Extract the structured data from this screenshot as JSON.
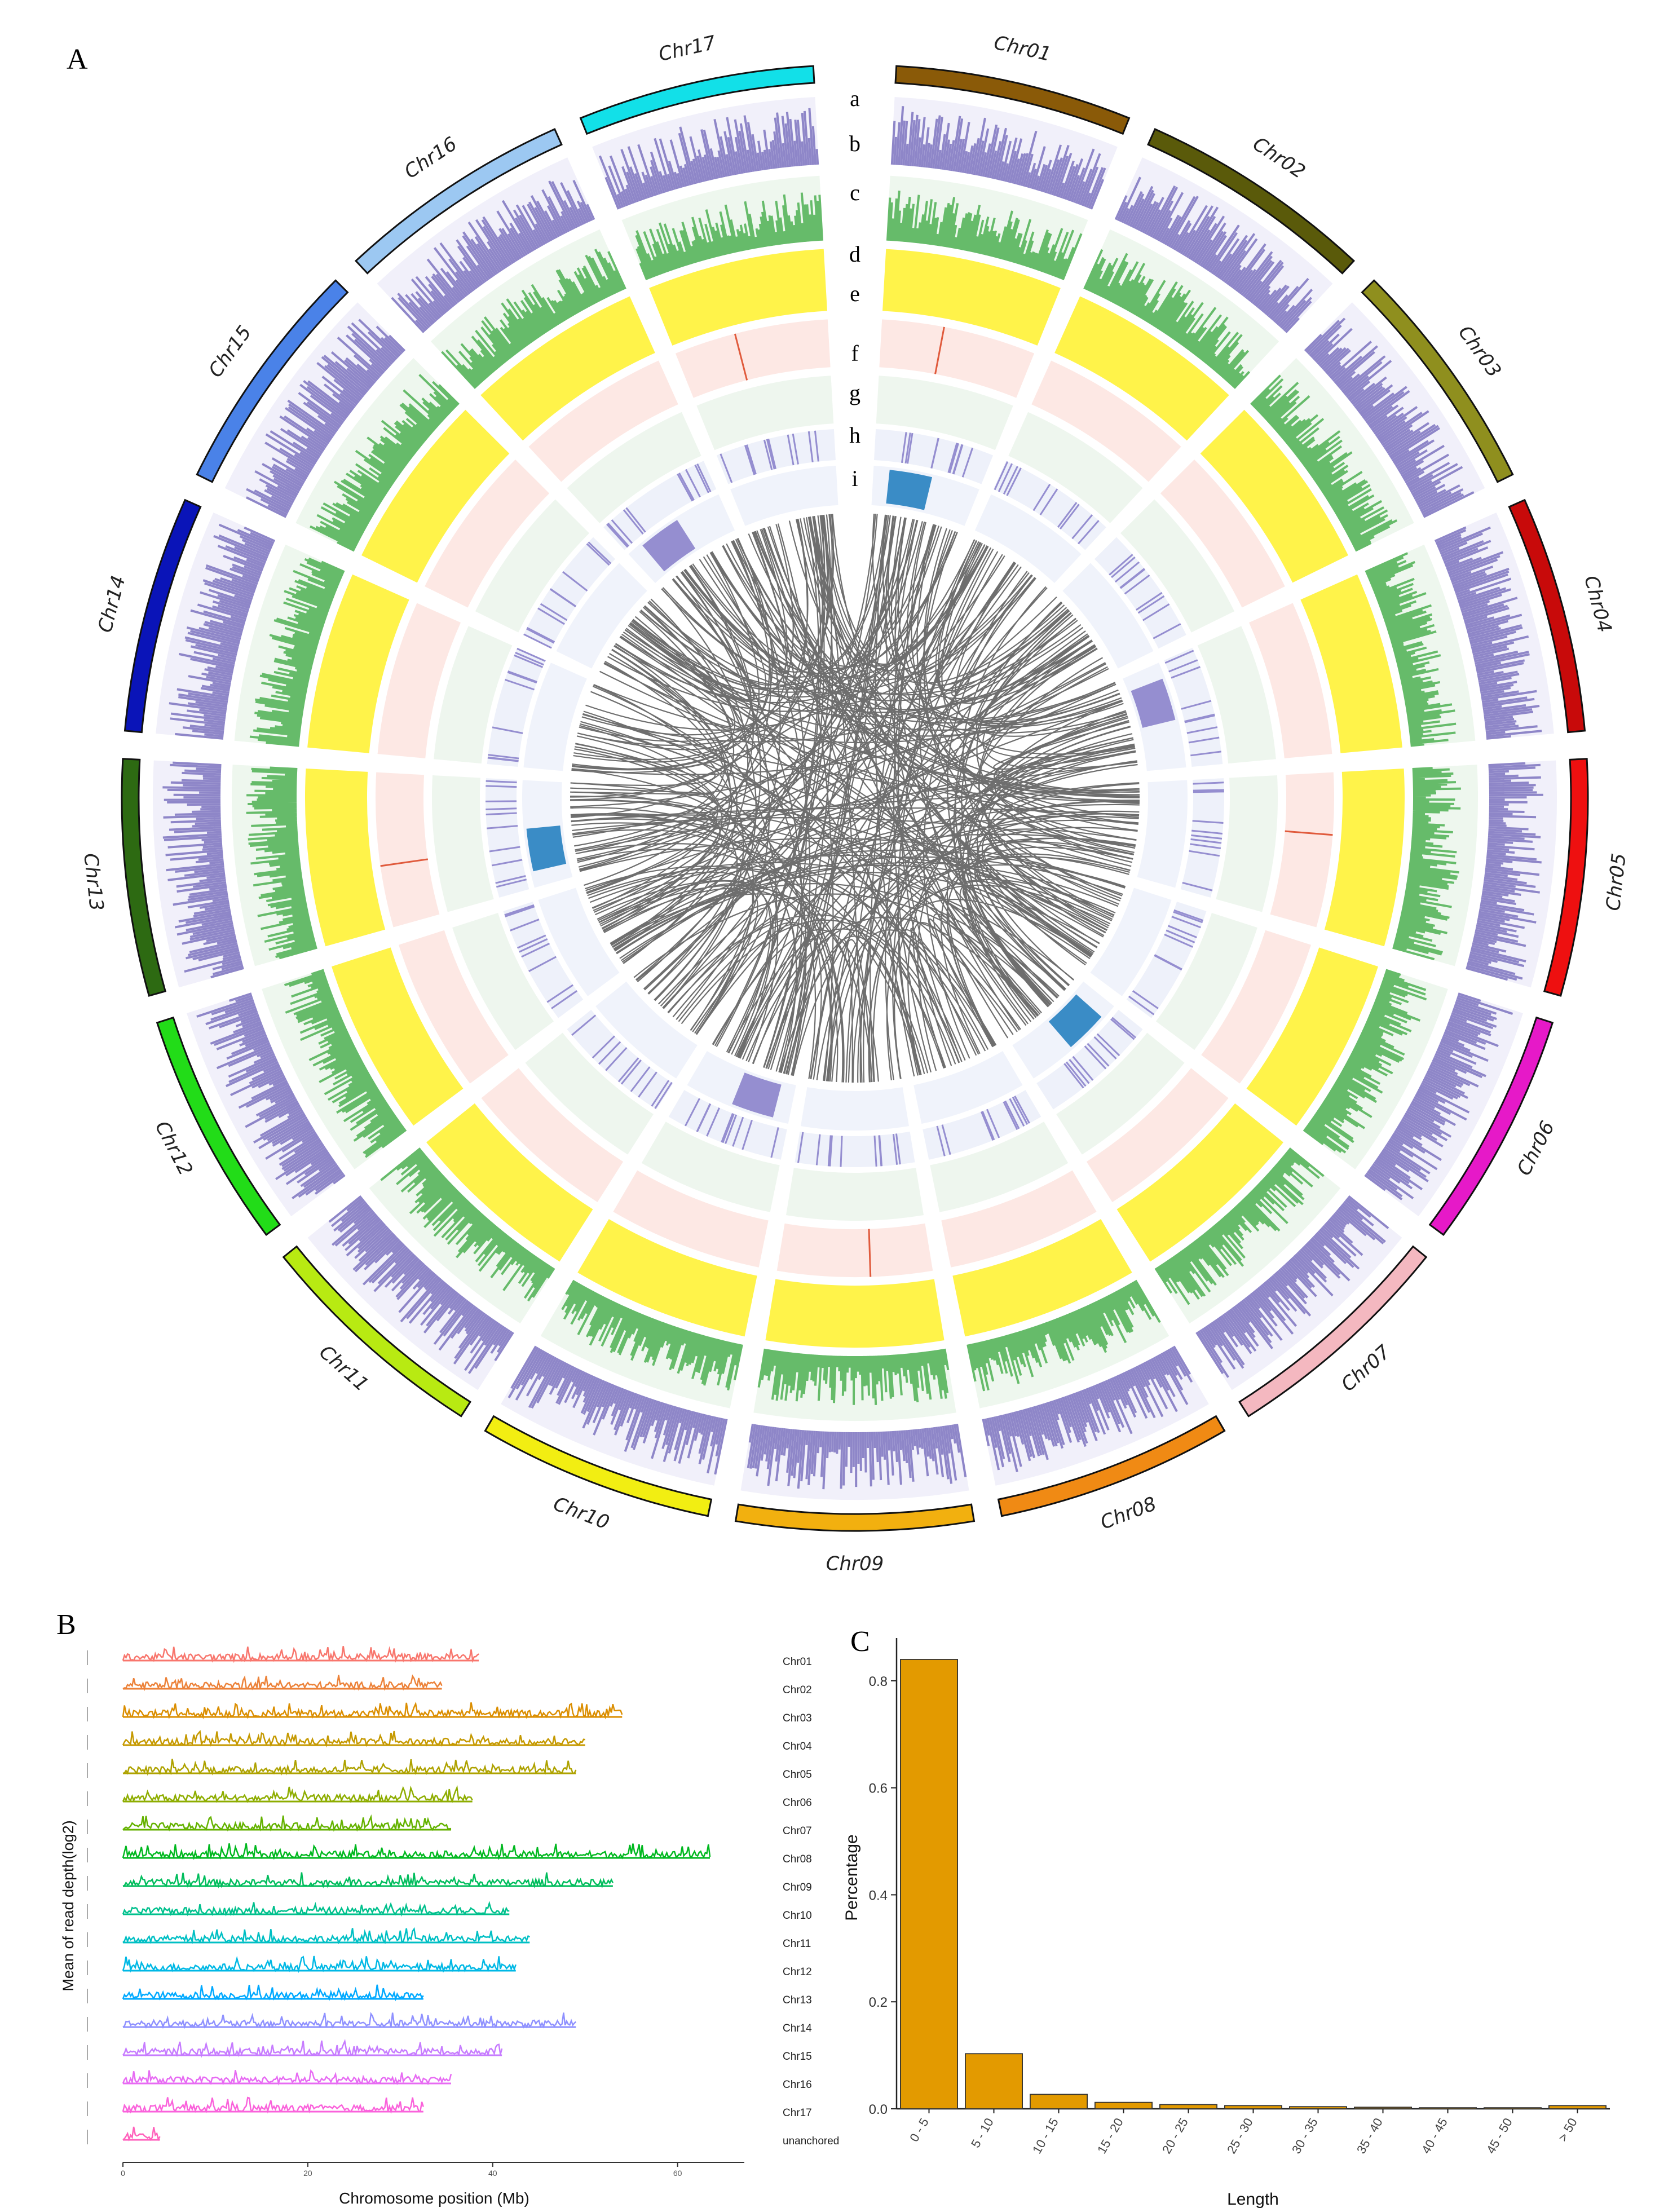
{
  "panels": {
    "a": "A",
    "b": "B",
    "c": "C"
  },
  "circos": {
    "chromosomes": [
      {
        "name": "Chr01",
        "color": "#8a5a08"
      },
      {
        "name": "Chr02",
        "color": "#5a5a0a"
      },
      {
        "name": "Chr03",
        "color": "#8f8f1e"
      },
      {
        "name": "Chr04",
        "color": "#c80a0a"
      },
      {
        "name": "Chr05",
        "color": "#ee1010"
      },
      {
        "name": "Chr06",
        "color": "#e619c8"
      },
      {
        "name": "Chr07",
        "color": "#f4b8c0"
      },
      {
        "name": "Chr08",
        "color": "#f08a14"
      },
      {
        "name": "Chr09",
        "color": "#f2b00f"
      },
      {
        "name": "Chr10",
        "color": "#f2ee12"
      },
      {
        "name": "Chr11",
        "color": "#b8ea12"
      },
      {
        "name": "Chr12",
        "color": "#22dc18"
      },
      {
        "name": "Chr13",
        "color": "#2d6a12"
      },
      {
        "name": "Chr14",
        "color": "#0a14b8"
      },
      {
        "name": "Chr15",
        "color": "#4a82e8"
      },
      {
        "name": "Chr16",
        "color": "#9cc8f2"
      },
      {
        "name": "Chr17",
        "color": "#12e0e8"
      }
    ],
    "track_labels": [
      "a",
      "b",
      "c",
      "d",
      "e",
      "f",
      "g",
      "h",
      "i"
    ],
    "colors": {
      "gene_density": "#8e86c8",
      "repeat": "#66bb6a",
      "gc": "#fff34a",
      "snp_bg": "#fde8e4",
      "snp_line": "#e05a3c",
      "link": "#555555",
      "blue": "#3a8cc6",
      "purple": "#958ed0"
    }
  },
  "chart_data": [
    {
      "type": "line",
      "title": "",
      "xlabel": "Chromosome position (Mb)",
      "ylabel": "Mean of read depth(log2)",
      "xticks": [
        0,
        20,
        40,
        60
      ],
      "series": [
        {
          "name": "Chr01",
          "length_mb": 38.5,
          "color": "#f8766d"
        },
        {
          "name": "Chr02",
          "length_mb": 34.5,
          "color": "#ec8239"
        },
        {
          "name": "Chr03",
          "length_mb": 54.0,
          "color": "#db8e00"
        },
        {
          "name": "Chr04",
          "length_mb": 50.0,
          "color": "#c59900"
        },
        {
          "name": "Chr05",
          "length_mb": 49.0,
          "color": "#aea200"
        },
        {
          "name": "Chr06",
          "length_mb": 37.8,
          "color": "#8ead00"
        },
        {
          "name": "Chr07",
          "length_mb": 35.5,
          "color": "#64b200"
        },
        {
          "name": "Chr08",
          "length_mb": 63.5,
          "color": "#00b81f"
        },
        {
          "name": "Chr09",
          "length_mb": 53.0,
          "color": "#00bd5c"
        },
        {
          "name": "Chr10",
          "length_mb": 41.8,
          "color": "#00c08d"
        },
        {
          "name": "Chr11",
          "length_mb": 44.0,
          "color": "#00bfc4"
        },
        {
          "name": "Chr12",
          "length_mb": 42.5,
          "color": "#00b8e5"
        },
        {
          "name": "Chr13",
          "length_mb": 32.5,
          "color": "#00a9ff"
        },
        {
          "name": "Chr14",
          "length_mb": 49.0,
          "color": "#8f91ff"
        },
        {
          "name": "Chr15",
          "length_mb": 41.0,
          "color": "#c77cff"
        },
        {
          "name": "Chr16",
          "length_mb": 35.5,
          "color": "#e76bf3"
        },
        {
          "name": "Chr17",
          "length_mb": 32.5,
          "color": "#fa62db"
        },
        {
          "name": "unanchored",
          "length_mb": 4.0,
          "color": "#ff62bc"
        }
      ]
    },
    {
      "type": "bar",
      "title": "",
      "xlabel": "Length",
      "ylabel": "Percentage",
      "categories": [
        "0 - 5",
        "5 - 10",
        "10 - 15",
        "15 - 20",
        "20 - 25",
        "25 - 30",
        "30 - 35",
        "35 - 40",
        "40 - 45",
        "45 - 50",
        "> 50"
      ],
      "values": [
        0.84,
        0.103,
        0.027,
        0.012,
        0.008,
        0.006,
        0.004,
        0.003,
        0.002,
        0.002,
        0.006
      ],
      "yticks": [
        0.0,
        0.2,
        0.4,
        0.6,
        0.8
      ],
      "ylim": [
        0,
        0.88
      ],
      "bar_color": "#e39a00"
    }
  ]
}
